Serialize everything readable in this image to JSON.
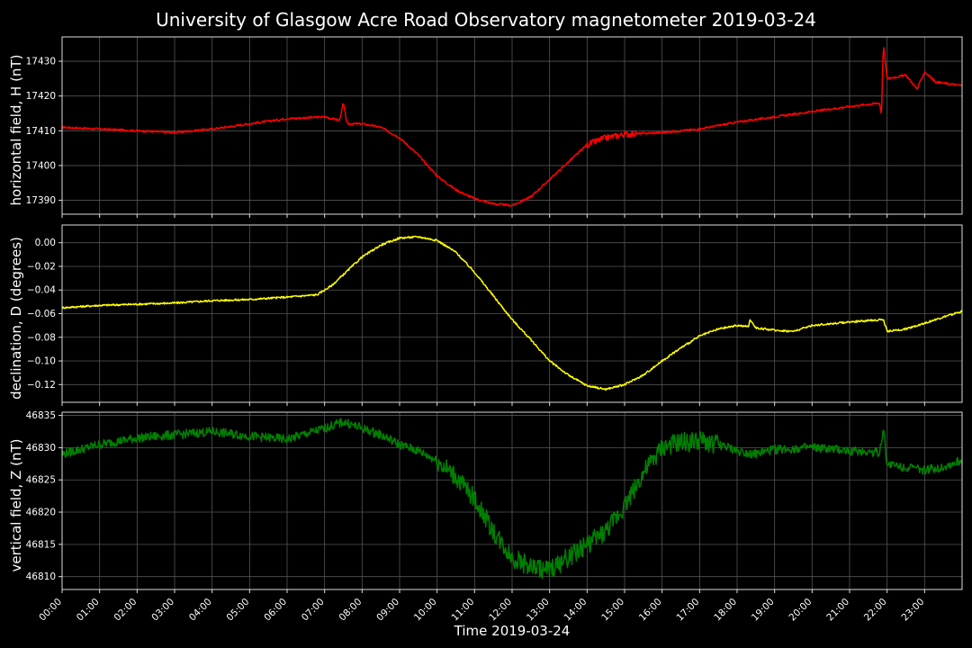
{
  "chart_data": {
    "type": "line",
    "title": "University of Glasgow Acre Road Observatory magnetometer 2019-03-24",
    "xlabel": "Time 2019-03-24",
    "x_ticks": [
      "00:00",
      "01:00",
      "02:00",
      "03:00",
      "04:00",
      "05:00",
      "06:00",
      "07:00",
      "08:00",
      "09:00",
      "10:00",
      "11:00",
      "12:00",
      "13:00",
      "14:00",
      "15:00",
      "16:00",
      "17:00",
      "18:00",
      "19:00",
      "20:00",
      "21:00",
      "22:00",
      "23:00"
    ],
    "x_range_hours": [
      0,
      24
    ],
    "grid": true,
    "panels": [
      {
        "name": "H",
        "ylabel": "horizontal field, H (nT)",
        "color": "#ff0000",
        "ylim": [
          17386,
          17437
        ],
        "yticks": [
          17390,
          17400,
          17410,
          17420,
          17430
        ],
        "ytick_labels": [
          "17390",
          "17400",
          "17410",
          "17420",
          "17430"
        ],
        "noise": 0.3,
        "points": [
          [
            0,
            17411
          ],
          [
            1,
            17410.5
          ],
          [
            2,
            17410
          ],
          [
            3,
            17409.5
          ],
          [
            4,
            17410.5
          ],
          [
            5,
            17412
          ],
          [
            6,
            17413.5
          ],
          [
            7,
            17414
          ],
          [
            7.4,
            17413
          ],
          [
            7.5,
            17418
          ],
          [
            7.6,
            17412
          ],
          [
            8,
            17412
          ],
          [
            8.5,
            17411
          ],
          [
            9,
            17408
          ],
          [
            9.5,
            17403
          ],
          [
            10,
            17397
          ],
          [
            10.5,
            17393
          ],
          [
            11,
            17390.5
          ],
          [
            11.5,
            17389
          ],
          [
            12,
            17388.5
          ],
          [
            12.5,
            17391
          ],
          [
            13,
            17396
          ],
          [
            13.5,
            17401
          ],
          [
            14,
            17406
          ],
          [
            14.5,
            17408
          ],
          [
            15,
            17409
          ],
          [
            16,
            17409.5
          ],
          [
            17,
            17410.5
          ],
          [
            18,
            17412.5
          ],
          [
            19,
            17414
          ],
          [
            20,
            17415.5
          ],
          [
            21,
            17417
          ],
          [
            21.8,
            17418
          ],
          [
            21.85,
            17414.5
          ],
          [
            21.9,
            17435
          ],
          [
            22,
            17425
          ],
          [
            22.5,
            17426
          ],
          [
            22.8,
            17422
          ],
          [
            23,
            17427
          ],
          [
            23.3,
            17424
          ],
          [
            24,
            17423
          ]
        ]
      },
      {
        "name": "D",
        "ylabel": "declination, D (degrees)",
        "color": "#ffff00",
        "ylim": [
          -0.135,
          0.015
        ],
        "yticks": [
          -0.12,
          -0.1,
          -0.08,
          -0.06,
          -0.04,
          -0.02,
          0.0
        ],
        "ytick_labels": [
          "−0.12",
          "−0.10",
          "−0.08",
          "−0.06",
          "−0.04",
          "−0.02",
          "0.00"
        ],
        "noise": 0.0008,
        "points": [
          [
            0,
            -0.055
          ],
          [
            1,
            -0.053
          ],
          [
            2,
            -0.052
          ],
          [
            3,
            -0.051
          ],
          [
            4,
            -0.049
          ],
          [
            5,
            -0.048
          ],
          [
            6,
            -0.046
          ],
          [
            6.8,
            -0.044
          ],
          [
            7.2,
            -0.036
          ],
          [
            7.5,
            -0.027
          ],
          [
            8,
            -0.012
          ],
          [
            8.5,
            -0.002
          ],
          [
            9,
            0.004
          ],
          [
            9.5,
            0.005
          ],
          [
            10,
            0.002
          ],
          [
            10.5,
            -0.008
          ],
          [
            11,
            -0.025
          ],
          [
            11.5,
            -0.045
          ],
          [
            12,
            -0.065
          ],
          [
            12.5,
            -0.082
          ],
          [
            13,
            -0.1
          ],
          [
            13.5,
            -0.112
          ],
          [
            14,
            -0.121
          ],
          [
            14.5,
            -0.124
          ],
          [
            15,
            -0.12
          ],
          [
            15.5,
            -0.112
          ],
          [
            16,
            -0.1
          ],
          [
            16.5,
            -0.089
          ],
          [
            17,
            -0.079
          ],
          [
            17.5,
            -0.073
          ],
          [
            18,
            -0.07
          ],
          [
            18.3,
            -0.071
          ],
          [
            18.35,
            -0.065
          ],
          [
            18.5,
            -0.072
          ],
          [
            19,
            -0.074
          ],
          [
            19.5,
            -0.075
          ],
          [
            20,
            -0.07
          ],
          [
            21,
            -0.067
          ],
          [
            21.9,
            -0.065
          ],
          [
            22,
            -0.075
          ],
          [
            22.5,
            -0.073
          ],
          [
            23,
            -0.068
          ],
          [
            23.5,
            -0.063
          ],
          [
            24,
            -0.058
          ]
        ]
      },
      {
        "name": "Z",
        "ylabel": "vertical field, Z (nT)",
        "color": "#008000",
        "ylim": [
          46808,
          46835.5
        ],
        "yticks": [
          46810,
          46815,
          46820,
          46825,
          46830,
          46835
        ],
        "ytick_labels": [
          "46810",
          "46815",
          "46820",
          "46825",
          "46830",
          "46835"
        ],
        "noise": 0.7,
        "points": [
          [
            0,
            46829
          ],
          [
            1,
            46830.5
          ],
          [
            2,
            46831.5
          ],
          [
            3,
            46832
          ],
          [
            4,
            46832.5
          ],
          [
            5,
            46831.8
          ],
          [
            6,
            46831.3
          ],
          [
            7,
            46833
          ],
          [
            7.5,
            46834
          ],
          [
            8,
            46833
          ],
          [
            8.5,
            46832
          ],
          [
            9,
            46830.5
          ],
          [
            9.5,
            46829.5
          ],
          [
            10,
            46828
          ],
          [
            10.5,
            46825.5
          ],
          [
            11,
            46822
          ],
          [
            11.5,
            46817
          ],
          [
            12,
            46813
          ],
          [
            12.5,
            46811.5
          ],
          [
            13,
            46811
          ],
          [
            13.5,
            46813
          ],
          [
            14,
            46815
          ],
          [
            14.5,
            46817
          ],
          [
            15,
            46821
          ],
          [
            15.5,
            46826
          ],
          [
            16,
            46830
          ],
          [
            16.5,
            46830.8
          ],
          [
            17,
            46831
          ],
          [
            17.5,
            46830.5
          ],
          [
            18,
            46829.5
          ],
          [
            18.5,
            46829
          ],
          [
            19,
            46829.7
          ],
          [
            20,
            46830
          ],
          [
            21,
            46829.5
          ],
          [
            21.8,
            46829.3
          ],
          [
            21.9,
            46833
          ],
          [
            22,
            46827.5
          ],
          [
            22.5,
            46827
          ],
          [
            23,
            46826.5
          ],
          [
            23.5,
            46827
          ],
          [
            24,
            46828
          ]
        ]
      }
    ]
  }
}
